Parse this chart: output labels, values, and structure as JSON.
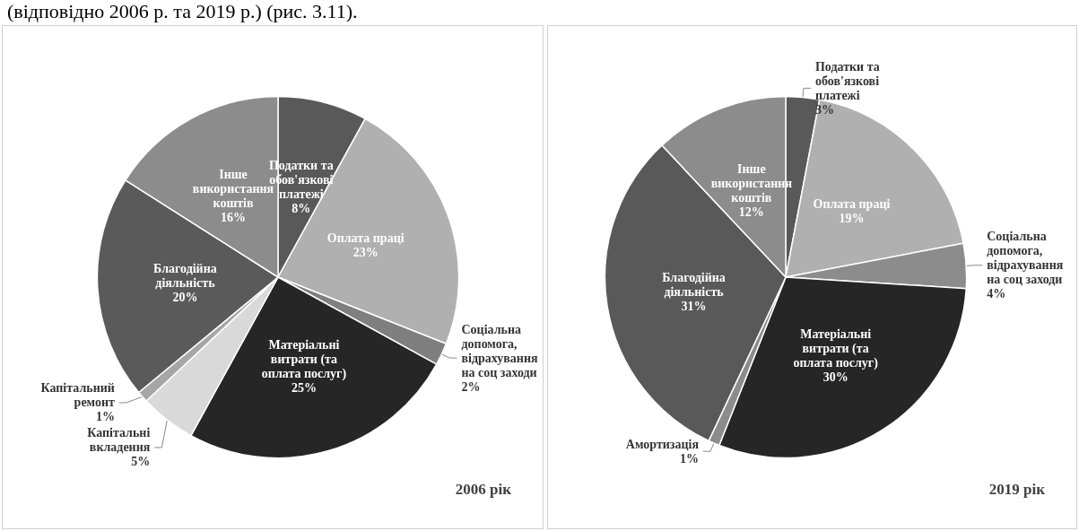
{
  "chart_data": [
    {
      "type": "pie",
      "title": "2006 рік",
      "annotations": [
        "(відповідно 2006 р. та 2019 р.) (рис. 3.11)."
      ],
      "categories": [
        "Податки та обов'язкові платежі",
        "Оплата праці",
        "Соціальна допомога, відрахування на соц заходи",
        "Матеріальні витрати (та оплата послуг)",
        "Капітальні вкладення",
        "Капітальний ремонт",
        "Благодійна діяльність",
        "Інше використання коштів"
      ],
      "values": [
        8,
        23,
        2,
        25,
        5,
        1,
        20,
        16
      ],
      "value_labels": [
        "8%",
        "23%",
        "2%",
        "25%",
        "5%",
        "1%",
        "20%",
        "16%"
      ],
      "colors": [
        "#595959",
        "#b0b0b0",
        "#7f7f7f",
        "#262626",
        "#d9d9d9",
        "#a6a6a6",
        "#5a5a5a",
        "#8c8c8c"
      ]
    },
    {
      "type": "pie",
      "title": "2019 рік",
      "categories": [
        "Податки та обов'язкові платежі",
        "Оплата праці",
        "Соціальна допомога, відрахування на соц заходи",
        "Матеріальні витрати (та оплата послуг)",
        "Амортизація",
        "Благодійна діяльність",
        "Інше використання коштів"
      ],
      "values": [
        3,
        19,
        4,
        30,
        1,
        31,
        12
      ],
      "value_labels": [
        "3%",
        "19%",
        "4%",
        "30%",
        "1%",
        "31%",
        "12%"
      ],
      "colors": [
        "#595959",
        "#b0b0b0",
        "#8c8c8c",
        "#262626",
        "#8c8c8c",
        "#595959",
        "#8c8c8c"
      ]
    }
  ]
}
